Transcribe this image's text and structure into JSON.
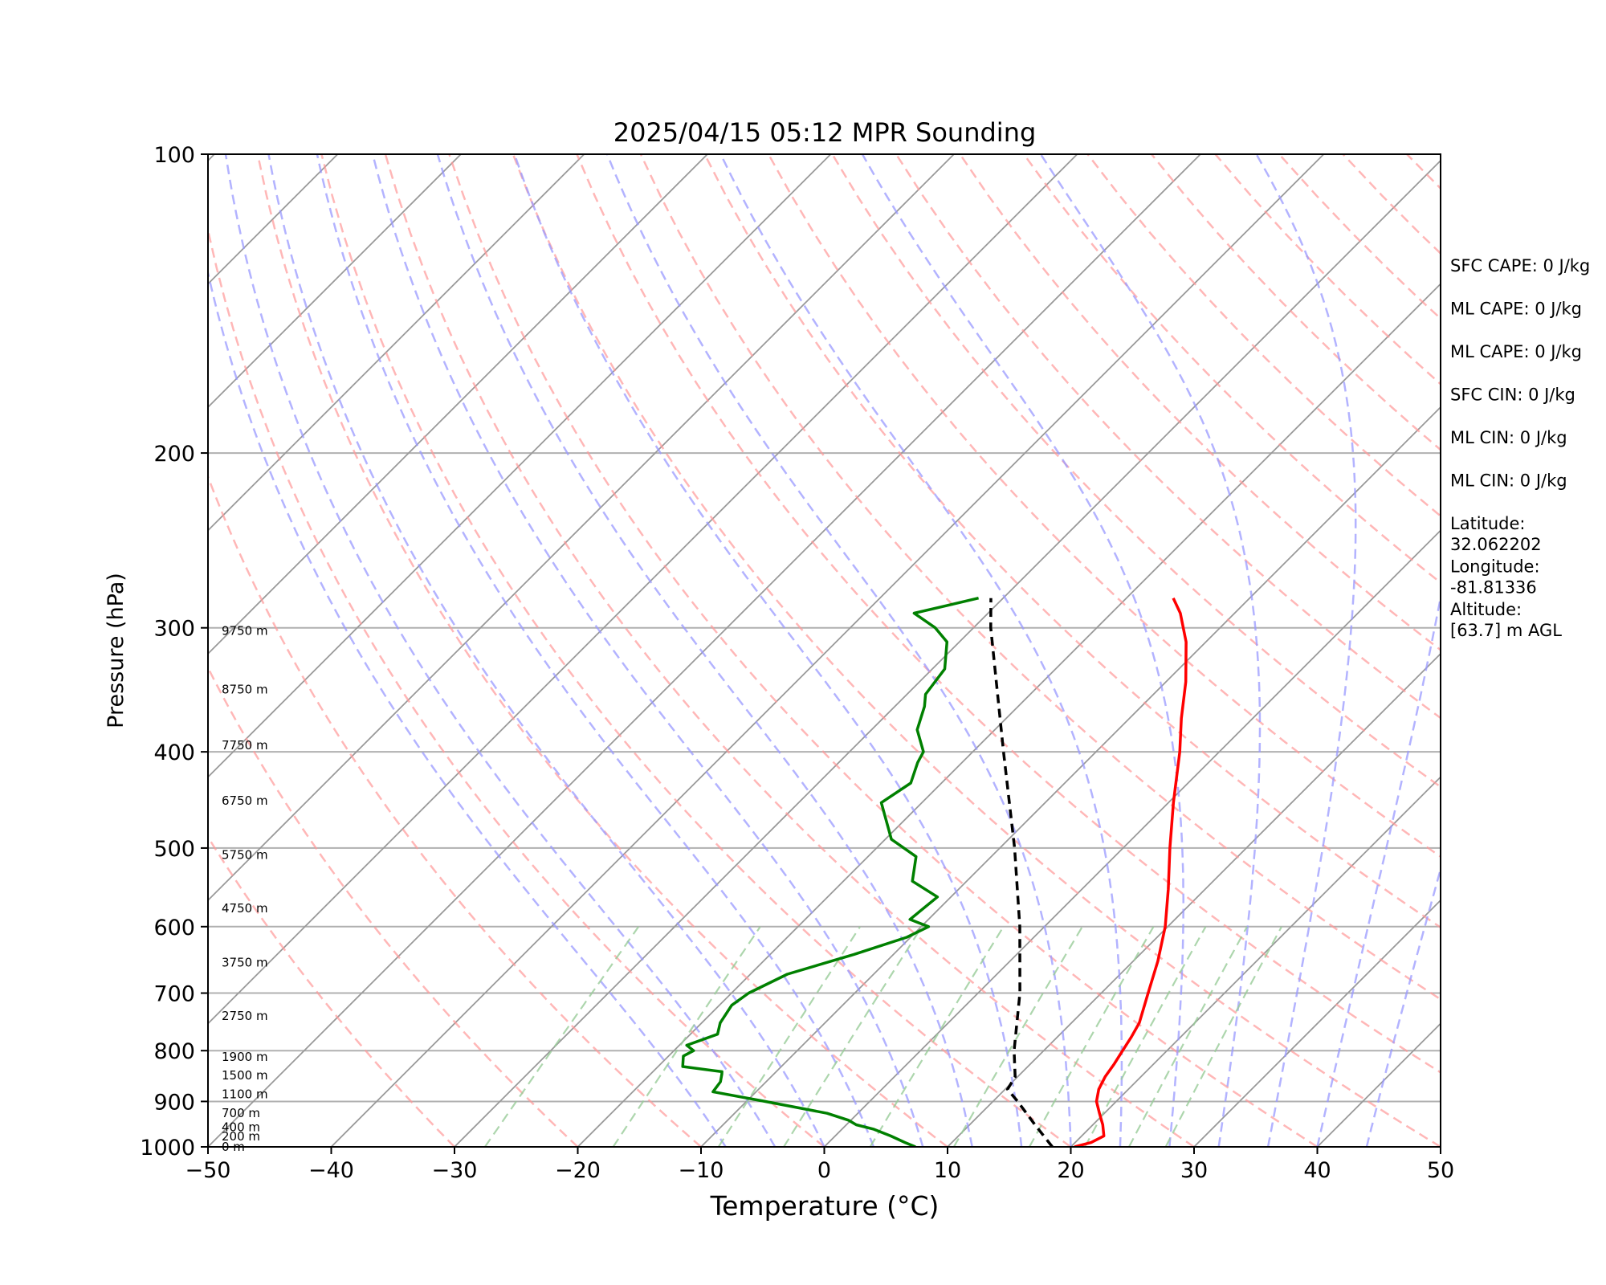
{
  "chart_data": {
    "type": "line",
    "title": "2025/04/15 05:12 MPR Sounding",
    "xlabel": "Temperature (°C)",
    "ylabel": "Pressure (hPa)",
    "xlim": [
      -50,
      50
    ],
    "ylim": [
      1000,
      100
    ],
    "y_scale": "log",
    "skew": "skew-T, isotherms tilted 45°",
    "x_ticks": [
      -50,
      -40,
      -30,
      -20,
      -10,
      0,
      10,
      20,
      30,
      40,
      50
    ],
    "x_tick_labels": [
      "−50",
      "−40",
      "−30",
      "−20",
      "−10",
      "0",
      "10",
      "20",
      "30",
      "40",
      "50"
    ],
    "y_ticks": [
      1000,
      900,
      800,
      700,
      600,
      500,
      400,
      300,
      200,
      100
    ],
    "y_tick_labels": [
      "1000",
      "900",
      "800",
      "700",
      "600",
      "500",
      "400",
      "300",
      "200",
      "100"
    ],
    "grid": true,
    "series": [
      {
        "role": "temperature",
        "color": "#ff0000",
        "points": [
          [
            1000,
            20.3
          ],
          [
            990,
            21.3
          ],
          [
            975,
            21.8
          ],
          [
            950,
            20.8
          ],
          [
            925,
            19.6
          ],
          [
            900,
            18.4
          ],
          [
            875,
            17.6
          ],
          [
            850,
            17.1
          ],
          [
            825,
            16.8
          ],
          [
            800,
            16.4
          ],
          [
            775,
            16.0
          ],
          [
            750,
            15.5
          ],
          [
            700,
            13.8
          ],
          [
            650,
            12.0
          ],
          [
            600,
            9.8
          ],
          [
            550,
            7.0
          ],
          [
            500,
            3.8
          ],
          [
            450,
            0.4
          ],
          [
            400,
            -3.2
          ],
          [
            370,
            -5.8
          ],
          [
            340,
            -8.4
          ],
          [
            310,
            -11.6
          ],
          [
            290,
            -14.4
          ],
          [
            280,
            -16.2
          ]
        ]
      },
      {
        "role": "dewpoint",
        "color": "#008000",
        "points": [
          [
            1000,
            7.4
          ],
          [
            990,
            6.2
          ],
          [
            975,
            4.5
          ],
          [
            960,
            2.6
          ],
          [
            950,
            0.8
          ],
          [
            940,
            -0.2
          ],
          [
            925,
            -2.5
          ],
          [
            900,
            -8.5
          ],
          [
            880,
            -13.5
          ],
          [
            860,
            -13.7
          ],
          [
            845,
            -14.2
          ],
          [
            840,
            -14.4
          ],
          [
            830,
            -18.0
          ],
          [
            810,
            -18.8
          ],
          [
            800,
            -18.4
          ],
          [
            790,
            -19.4
          ],
          [
            770,
            -17.8
          ],
          [
            750,
            -18.5
          ],
          [
            720,
            -19.0
          ],
          [
            700,
            -18.6
          ],
          [
            670,
            -17.0
          ],
          [
            640,
            -13.2
          ],
          [
            615,
            -10.3
          ],
          [
            600,
            -9.4
          ],
          [
            590,
            -11.5
          ],
          [
            560,
            -11.1
          ],
          [
            540,
            -14.4
          ],
          [
            510,
            -16.1
          ],
          [
            490,
            -19.5
          ],
          [
            450,
            -23.3
          ],
          [
            430,
            -22.5
          ],
          [
            410,
            -23.6
          ],
          [
            400,
            -24.0
          ],
          [
            380,
            -26.3
          ],
          [
            360,
            -27.6
          ],
          [
            350,
            -28.5
          ],
          [
            330,
            -29.0
          ],
          [
            310,
            -31.0
          ],
          [
            300,
            -33.1
          ],
          [
            290,
            -36.0
          ],
          [
            285,
            -34.0
          ],
          [
            280,
            -32.0
          ]
        ]
      },
      {
        "role": "parcel",
        "color": "#000000",
        "style": "dashed",
        "points": [
          [
            1000,
            18.5
          ],
          [
            950,
            15.3
          ],
          [
            900,
            12.0
          ],
          [
            875,
            10.2
          ],
          [
            850,
            9.8
          ],
          [
            800,
            7.6
          ],
          [
            700,
            3.4
          ],
          [
            600,
            -2.0
          ],
          [
            500,
            -8.8
          ],
          [
            400,
            -17.5
          ],
          [
            300,
            -28.6
          ],
          [
            280,
            -31.0
          ]
        ]
      }
    ],
    "height_labels": [
      {
        "label": "0 m",
        "p": 1000
      },
      {
        "label": "200 m",
        "p": 976
      },
      {
        "label": "400 m",
        "p": 955
      },
      {
        "label": "700 m",
        "p": 925
      },
      {
        "label": "1100 m",
        "p": 885
      },
      {
        "label": "1500 m",
        "p": 847
      },
      {
        "label": "1900 m",
        "p": 812
      },
      {
        "label": "2750 m",
        "p": 738
      },
      {
        "label": "3750 m",
        "p": 652
      },
      {
        "label": "4750 m",
        "p": 575
      },
      {
        "label": "5750 m",
        "p": 508
      },
      {
        "label": "6750 m",
        "p": 448
      },
      {
        "label": "7750 m",
        "p": 394
      },
      {
        "label": "8750 m",
        "p": 346
      },
      {
        "label": "9750 m",
        "p": 302
      }
    ],
    "reference_lines": {
      "dry_adiabats_color": "#ff9999",
      "moist_adiabats_color": "#9999ff",
      "mixing_ratio_color": "#99cc99",
      "isotherm_color": "#999999"
    }
  },
  "side_panel": [
    {
      "text": "SFC CAPE: 0 J/kg"
    },
    {
      "text": "ML CAPE: 0 J/kg"
    },
    {
      "text": "ML CAPE: 0 J/kg"
    },
    {
      "text": "SFC CIN: 0 J/kg"
    },
    {
      "text": "ML CIN: 0 J/kg"
    },
    {
      "text": "ML CIN: 0 J/kg"
    },
    {
      "text": "Latitude:",
      "text2": "32.062202"
    },
    {
      "text": "Longitude:",
      "text2": "-81.81336"
    },
    {
      "text": "Altitude:",
      "text2": "[63.7] m AGL"
    }
  ]
}
